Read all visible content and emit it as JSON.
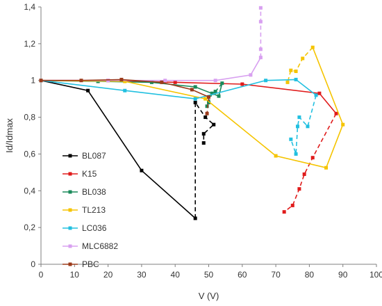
{
  "chart_data": {
    "type": "scatter",
    "title": "",
    "xlabel": "V (V)",
    "ylabel": "Id/Idmax",
    "xlim": [
      0,
      100
    ],
    "ylim": [
      0,
      1.4
    ],
    "x_ticks": [
      0,
      10,
      20,
      30,
      40,
      50,
      60,
      70,
      80,
      90,
      100
    ],
    "y_ticks": [
      {
        "value": 0,
        "label": "0"
      },
      {
        "value": 0.2,
        "label": "0,2"
      },
      {
        "value": 0.4,
        "label": "0,4"
      },
      {
        "value": 0.6,
        "label": "0,6"
      },
      {
        "value": 0.8,
        "label": "0,8"
      },
      {
        "value": 1.0,
        "label": "1"
      },
      {
        "value": 1.2,
        "label": "1,2"
      },
      {
        "value": 1.4,
        "label": "1,4"
      }
    ],
    "grid": false,
    "legend_position": "bottom-left",
    "series": [
      {
        "name": "BL087",
        "color": "#000000",
        "solid": [
          [
            0,
            1.0
          ],
          [
            14,
            0.945
          ],
          [
            30,
            0.51
          ],
          [
            46,
            0.25
          ]
        ],
        "dashed": [
          [
            46,
            0.25
          ],
          [
            46,
            0.88
          ],
          [
            49,
            0.8
          ],
          [
            51.5,
            0.76
          ],
          [
            48.5,
            0.71
          ],
          [
            48.5,
            0.66
          ]
        ]
      },
      {
        "name": "K15",
        "color": "#e01b1b",
        "solid": [
          [
            0,
            1.0
          ],
          [
            20,
            1.0
          ],
          [
            40,
            0.99
          ],
          [
            60,
            0.98
          ],
          [
            83,
            0.93
          ],
          [
            88,
            0.82
          ]
        ],
        "dashed": [
          [
            88,
            0.82
          ],
          [
            81,
            0.58
          ],
          [
            78.5,
            0.49
          ],
          [
            77,
            0.41
          ],
          [
            75,
            0.32
          ],
          [
            72.5,
            0.285
          ]
        ]
      },
      {
        "name": "BL038",
        "color": "#1a8a5a",
        "solid": [
          [
            0,
            1.0
          ],
          [
            17,
            0.995
          ],
          [
            33,
            0.99
          ],
          [
            46,
            0.965
          ],
          [
            53,
            0.915
          ],
          [
            54,
            0.985
          ]
        ],
        "dashed": [
          [
            54,
            0.985
          ],
          [
            52,
            0.94
          ],
          [
            51,
            0.93
          ],
          [
            50,
            0.88
          ],
          [
            49.5,
            0.86
          ]
        ]
      },
      {
        "name": "TL213",
        "color": "#f5c400",
        "solid": [
          [
            0,
            1.0
          ],
          [
            25,
            0.995
          ],
          [
            49,
            0.9
          ],
          [
            70,
            0.59
          ],
          [
            85,
            0.525
          ],
          [
            90,
            0.76
          ],
          [
            81,
            1.18
          ]
        ],
        "dashed": [
          [
            81,
            1.18
          ],
          [
            78,
            1.12
          ],
          [
            76,
            1.05
          ],
          [
            74.5,
            1.055
          ],
          [
            73.5,
            0.99
          ]
        ]
      },
      {
        "name": "LC036",
        "color": "#22c0e0",
        "solid": [
          [
            0,
            1.0
          ],
          [
            25,
            0.945
          ],
          [
            46,
            0.9
          ],
          [
            67,
            1.0
          ],
          [
            76,
            1.005
          ],
          [
            82,
            0.92
          ]
        ],
        "dashed": [
          [
            82,
            0.92
          ],
          [
            79.5,
            0.75
          ],
          [
            77,
            0.8
          ],
          [
            76.5,
            0.75
          ],
          [
            76,
            0.6
          ],
          [
            74.5,
            0.68
          ]
        ]
      },
      {
        "name": "MLC6882",
        "color": "#d8a0f0",
        "solid": [
          [
            0,
            1.0
          ],
          [
            20,
            1.0
          ],
          [
            37,
            1.0
          ],
          [
            52,
            1.0
          ],
          [
            62.5,
            1.03
          ],
          [
            65.5,
            1.125
          ]
        ],
        "dashed": [
          [
            65.5,
            1.125
          ],
          [
            65.5,
            1.17
          ],
          [
            65.5,
            1.32
          ],
          [
            65.5,
            1.395
          ]
        ]
      },
      {
        "name": "PBC",
        "color": "#9b3a1a",
        "solid": [
          [
            0,
            1.0
          ],
          [
            12,
            1.0
          ],
          [
            24,
            1.005
          ],
          [
            36,
            0.99
          ],
          [
            45,
            0.95
          ],
          [
            50,
            0.91
          ]
        ],
        "dashed": [
          [
            50,
            0.91
          ],
          [
            49.5,
            0.82
          ]
        ]
      }
    ]
  }
}
